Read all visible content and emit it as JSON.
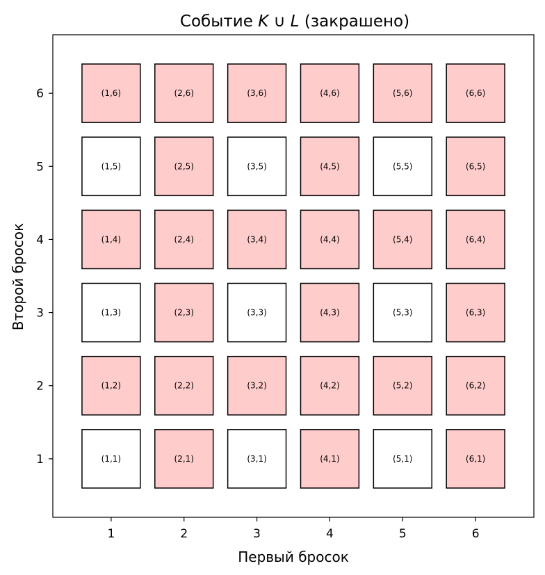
{
  "chart_data": {
    "type": "heatmap",
    "title": "Событие K ∪ L (закрашено)",
    "title_parts": {
      "prefix": "Событие ",
      "k": "K",
      "union": " ∪ ",
      "l": "L",
      "suffix": " (закрашено)"
    },
    "xlabel": "Первый бросок",
    "ylabel": "Второй бросок",
    "x_ticks": [
      "1",
      "2",
      "3",
      "4",
      "5",
      "6"
    ],
    "y_ticks": [
      "1",
      "2",
      "3",
      "4",
      "5",
      "6"
    ],
    "xlim": [
      0.2,
      6.8
    ],
    "ylim": [
      0.2,
      6.8
    ],
    "grid": false,
    "colors": {
      "shaded": "#ffcccc",
      "unshaded": "#ffffff",
      "edge": "#000000"
    },
    "cells": [
      {
        "x": 1,
        "y": 1,
        "label": "(1,1)",
        "shaded": false
      },
      {
        "x": 2,
        "y": 1,
        "label": "(2,1)",
        "shaded": true
      },
      {
        "x": 3,
        "y": 1,
        "label": "(3,1)",
        "shaded": false
      },
      {
        "x": 4,
        "y": 1,
        "label": "(4,1)",
        "shaded": true
      },
      {
        "x": 5,
        "y": 1,
        "label": "(5,1)",
        "shaded": false
      },
      {
        "x": 6,
        "y": 1,
        "label": "(6,1)",
        "shaded": true
      },
      {
        "x": 1,
        "y": 2,
        "label": "(1,2)",
        "shaded": true
      },
      {
        "x": 2,
        "y": 2,
        "label": "(2,2)",
        "shaded": true
      },
      {
        "x": 3,
        "y": 2,
        "label": "(3,2)",
        "shaded": true
      },
      {
        "x": 4,
        "y": 2,
        "label": "(4,2)",
        "shaded": true
      },
      {
        "x": 5,
        "y": 2,
        "label": "(5,2)",
        "shaded": true
      },
      {
        "x": 6,
        "y": 2,
        "label": "(6,2)",
        "shaded": true
      },
      {
        "x": 1,
        "y": 3,
        "label": "(1,3)",
        "shaded": false
      },
      {
        "x": 2,
        "y": 3,
        "label": "(2,3)",
        "shaded": true
      },
      {
        "x": 3,
        "y": 3,
        "label": "(3,3)",
        "shaded": false
      },
      {
        "x": 4,
        "y": 3,
        "label": "(4,3)",
        "shaded": true
      },
      {
        "x": 5,
        "y": 3,
        "label": "(5,3)",
        "shaded": false
      },
      {
        "x": 6,
        "y": 3,
        "label": "(6,3)",
        "shaded": true
      },
      {
        "x": 1,
        "y": 4,
        "label": "(1,4)",
        "shaded": true
      },
      {
        "x": 2,
        "y": 4,
        "label": "(2,4)",
        "shaded": true
      },
      {
        "x": 3,
        "y": 4,
        "label": "(3,4)",
        "shaded": true
      },
      {
        "x": 4,
        "y": 4,
        "label": "(4,4)",
        "shaded": true
      },
      {
        "x": 5,
        "y": 4,
        "label": "(5,4)",
        "shaded": true
      },
      {
        "x": 6,
        "y": 4,
        "label": "(6,4)",
        "shaded": true
      },
      {
        "x": 1,
        "y": 5,
        "label": "(1,5)",
        "shaded": false
      },
      {
        "x": 2,
        "y": 5,
        "label": "(2,5)",
        "shaded": true
      },
      {
        "x": 3,
        "y": 5,
        "label": "(3,5)",
        "shaded": false
      },
      {
        "x": 4,
        "y": 5,
        "label": "(4,5)",
        "shaded": true
      },
      {
        "x": 5,
        "y": 5,
        "label": "(5,5)",
        "shaded": false
      },
      {
        "x": 6,
        "y": 5,
        "label": "(6,5)",
        "shaded": true
      },
      {
        "x": 1,
        "y": 6,
        "label": "(1,6)",
        "shaded": true
      },
      {
        "x": 2,
        "y": 6,
        "label": "(2,6)",
        "shaded": true
      },
      {
        "x": 3,
        "y": 6,
        "label": "(3,6)",
        "shaded": true
      },
      {
        "x": 4,
        "y": 6,
        "label": "(4,6)",
        "shaded": true
      },
      {
        "x": 5,
        "y": 6,
        "label": "(5,6)",
        "shaded": true
      },
      {
        "x": 6,
        "y": 6,
        "label": "(6,6)",
        "shaded": true
      }
    ]
  }
}
